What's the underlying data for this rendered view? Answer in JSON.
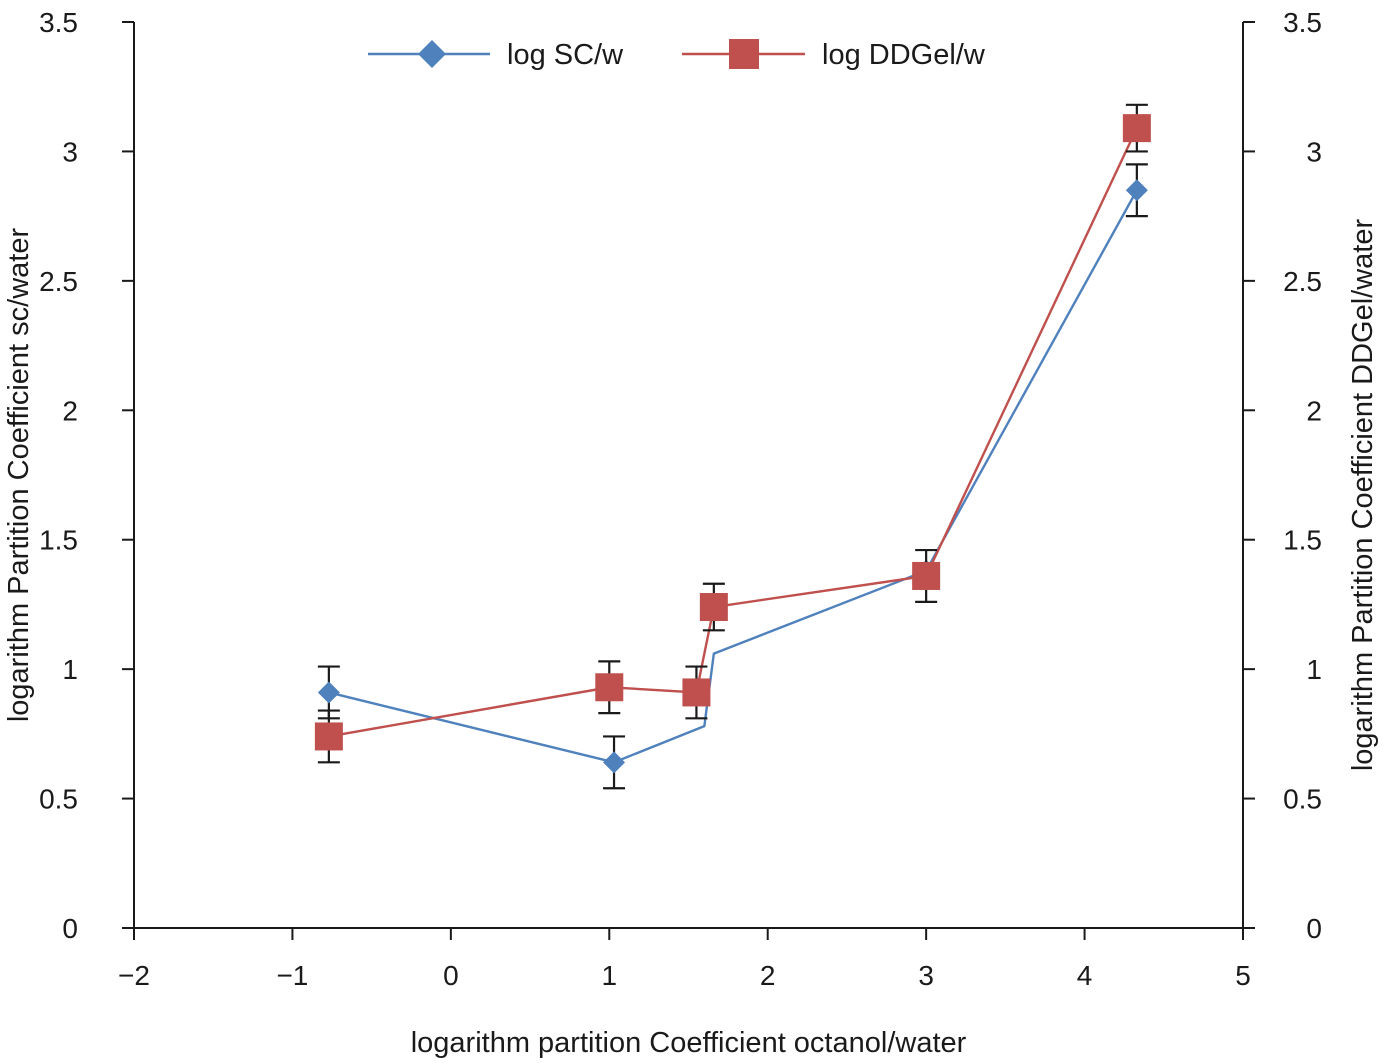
{
  "chart_data": {
    "type": "line",
    "title": "",
    "xlabel": "logarithm partition Coefficient octanol/water",
    "ylabel": "logarithm Partition Coefficient sc/water",
    "y2label": "logarithm Partition Coefficient DDGel/water",
    "xlim": [
      -2,
      5
    ],
    "ylim": [
      0,
      3.5
    ],
    "xticks": [
      -2,
      -1,
      0,
      1,
      2,
      3,
      4,
      5
    ],
    "xtick_labels": [
      "−2",
      "−1",
      "0",
      "1",
      "2",
      "3",
      "4",
      "5"
    ],
    "yticks": [
      0,
      0.5,
      1,
      1.5,
      2,
      2.5,
      3,
      3.5
    ],
    "ytick_labels": [
      "0",
      "0.5",
      "1",
      "1.5",
      "2",
      "2.5",
      "3",
      "3.5"
    ],
    "grid": false,
    "legend_position": "top",
    "series": [
      {
        "name": "log SC/w",
        "color": "#4F81BD",
        "marker": "diamond",
        "x": [
          -0.77,
          1.03,
          1.6,
          1.66,
          3.0,
          4.33
        ],
        "y": [
          0.91,
          0.64,
          0.78,
          1.06,
          1.38,
          2.85
        ],
        "err": [
          0.1,
          0.1,
          0.1,
          0.1,
          0.12,
          0.1
        ],
        "err_shown": [
          true,
          true,
          false,
          false,
          false,
          true
        ]
      },
      {
        "name": "log DDGel/w",
        "color": "#C0504D",
        "marker": "square",
        "x": [
          -0.77,
          1.0,
          1.55,
          1.66,
          3.0,
          4.33
        ],
        "y": [
          0.74,
          0.93,
          0.91,
          1.24,
          1.36,
          3.09
        ],
        "err": [
          0.1,
          0.1,
          0.1,
          0.09,
          0.1,
          0.09
        ],
        "err_shown": [
          true,
          true,
          true,
          true,
          true,
          true
        ]
      }
    ]
  }
}
